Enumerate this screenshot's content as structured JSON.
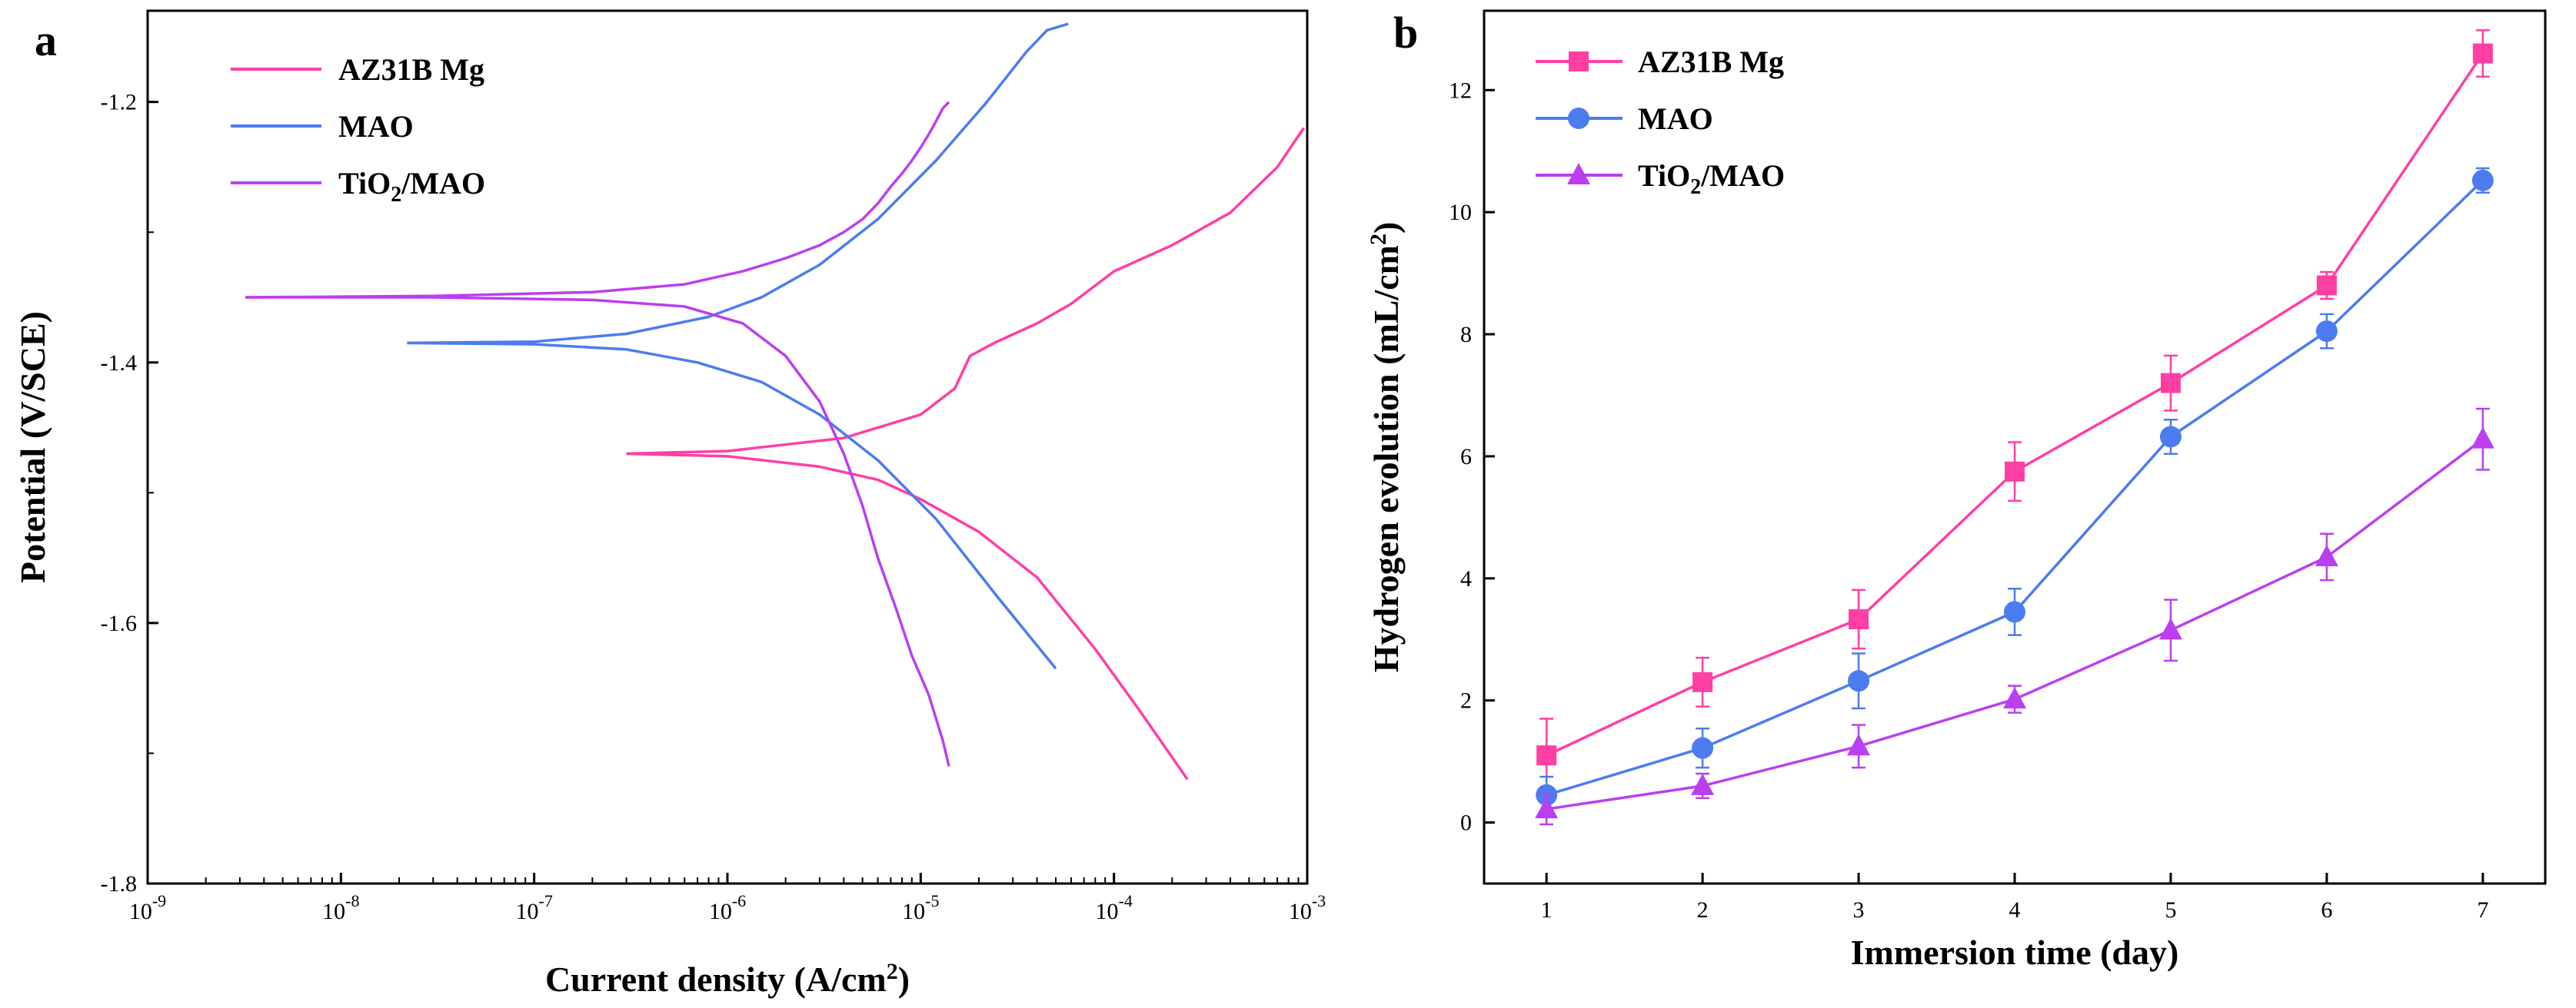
{
  "chart_data": [
    {
      "panel": "a",
      "type": "line",
      "xscale": "log",
      "xlabel_main": "Current density (A/cm",
      "xlabel_sup": "2",
      "xlabel_end": ")",
      "ylabel": "Potential (V/SCE)",
      "xlim": [
        1e-09,
        0.001
      ],
      "ylim": [
        -1.8,
        -1.13
      ],
      "x_tick_base": "10",
      "x_tick_exponents": [
        "-9",
        "-8",
        "-7",
        "-6",
        "-5",
        "-4",
        "-3"
      ],
      "y_ticks": [
        -1.8,
        -1.6,
        -1.4,
        -1.2
      ],
      "y_tick_labels": [
        "-1.8",
        "-1.6",
        "-1.4",
        "-1.2"
      ],
      "legend": {
        "position": "top-left"
      },
      "series": [
        {
          "name": "AZ31B Mg",
          "color": "#ff3fa4",
          "legend_main": "AZ31B Mg",
          "legend_sub": "",
          "legend_end": "",
          "branches": [
            {
              "x": [
                3e-07,
                1e-06,
                3e-06,
                6e-06,
                1e-05,
                2e-05,
                4e-05,
                8e-05,
                0.00014,
                0.00024
              ],
              "y": [
                -1.47,
                -1.472,
                -1.48,
                -1.49,
                -1.505,
                -1.53,
                -1.565,
                -1.62,
                -1.67,
                -1.72
              ]
            },
            {
              "x": [
                3e-07,
                1e-06,
                4e-06,
                1e-05,
                1.5e-05,
                1.8e-05,
                2.4e-05,
                4e-05,
                6e-05,
                0.0001,
                0.0002,
                0.0004,
                0.0007,
                0.00096
              ],
              "y": [
                -1.47,
                -1.468,
                -1.458,
                -1.44,
                -1.42,
                -1.395,
                -1.385,
                -1.37,
                -1.355,
                -1.33,
                -1.31,
                -1.285,
                -1.25,
                -1.22
              ]
            }
          ]
        },
        {
          "name": "MAO",
          "color": "#4c7cf0",
          "legend_main": "MAO",
          "legend_sub": "",
          "legend_end": "",
          "branches": [
            {
              "x": [
                2.2e-08,
                1e-07,
                3e-07,
                7e-07,
                1.5e-06,
                3e-06,
                6e-06,
                1.2e-05,
                2.5e-05,
                5e-05
              ],
              "y": [
                -1.385,
                -1.386,
                -1.39,
                -1.4,
                -1.415,
                -1.44,
                -1.475,
                -1.52,
                -1.58,
                -1.635
              ]
            },
            {
              "x": [
                2.2e-08,
                1e-07,
                3e-07,
                8e-07,
                1.5e-06,
                3e-06,
                6e-06,
                1.2e-05,
                2.2e-05,
                3.5e-05,
                4.5e-05,
                5.8e-05
              ],
              "y": [
                -1.385,
                -1.384,
                -1.378,
                -1.365,
                -1.35,
                -1.325,
                -1.29,
                -1.245,
                -1.2,
                -1.162,
                -1.145,
                -1.14
              ]
            }
          ]
        },
        {
          "name": "TiO2/MAO",
          "color": "#bb3ff0",
          "legend_main": "TiO",
          "legend_sub": "2",
          "legend_end": "/MAO",
          "branches": [
            {
              "x": [
                3.2e-09,
                3e-08,
                2e-07,
                6e-07,
                1.2e-06,
                2e-06,
                3e-06,
                4e-06,
                5e-06,
                6e-06,
                7.5e-06,
                9e-06,
                1.1e-05,
                1.3e-05,
                1.4e-05
              ],
              "y": [
                -1.35,
                -1.35,
                -1.352,
                -1.357,
                -1.37,
                -1.395,
                -1.43,
                -1.47,
                -1.51,
                -1.55,
                -1.59,
                -1.625,
                -1.655,
                -1.69,
                -1.71
              ]
            },
            {
              "x": [
                3.2e-09,
                3e-08,
                2e-07,
                6e-07,
                1.2e-06,
                2e-06,
                3e-06,
                4e-06,
                5e-06,
                6e-06,
                7e-06,
                8e-06,
                9e-06,
                1e-05,
                1.1e-05,
                1.2e-05,
                1.3e-05,
                1.4e-05
              ],
              "y": [
                -1.35,
                -1.349,
                -1.346,
                -1.34,
                -1.33,
                -1.32,
                -1.31,
                -1.3,
                -1.29,
                -1.278,
                -1.265,
                -1.255,
                -1.245,
                -1.235,
                -1.225,
                -1.215,
                -1.205,
                -1.2
              ]
            }
          ]
        }
      ]
    },
    {
      "panel": "b",
      "type": "line",
      "xlabel": "Immersion time (day)",
      "ylabel_main": "Hydrogen evolution  (mL/cm",
      "ylabel_sup": "2",
      "ylabel_end": ")",
      "xlim": [
        0.6,
        7.4
      ],
      "ylim": [
        -1,
        13.3
      ],
      "x_ticks": [
        1,
        2,
        3,
        4,
        5,
        6,
        7
      ],
      "x_tick_labels": [
        "1",
        "2",
        "3",
        "4",
        "5",
        "6",
        "7"
      ],
      "y_ticks": [
        0,
        2,
        4,
        6,
        8,
        10,
        12
      ],
      "y_tick_labels": [
        "0",
        "2",
        "4",
        "6",
        "8",
        "10",
        "12"
      ],
      "legend": {
        "position": "top-left"
      },
      "x": [
        1,
        2,
        3,
        4,
        5,
        6,
        7
      ],
      "series": [
        {
          "name": "AZ31B Mg",
          "marker": "square",
          "color": "#ff3fa4",
          "legend_main": "AZ31B Mg",
          "legend_sub": "",
          "legend_end": "",
          "values": [
            1.1,
            2.3,
            3.33,
            5.75,
            7.2,
            8.8,
            12.6
          ],
          "errors": [
            0.6,
            0.4,
            0.48,
            0.48,
            0.45,
            0.22,
            0.38
          ]
        },
        {
          "name": "MAO",
          "marker": "circle",
          "color": "#4c7cf0",
          "legend_main": "MAO",
          "legend_sub": "",
          "legend_end": "",
          "values": [
            0.45,
            1.22,
            2.32,
            3.45,
            6.32,
            8.05,
            10.52
          ],
          "errors": [
            0.3,
            0.32,
            0.45,
            0.38,
            0.28,
            0.28,
            0.2
          ]
        },
        {
          "name": "TiO2/MAO",
          "marker": "triangle",
          "color": "#bb3ff0",
          "legend_main": "TiO",
          "legend_sub": "2",
          "legend_end": "/MAO",
          "values": [
            0.22,
            0.6,
            1.25,
            2.02,
            3.15,
            4.35,
            6.28
          ],
          "errors": [
            0.25,
            0.2,
            0.35,
            0.22,
            0.5,
            0.38,
            0.5
          ]
        }
      ]
    }
  ]
}
